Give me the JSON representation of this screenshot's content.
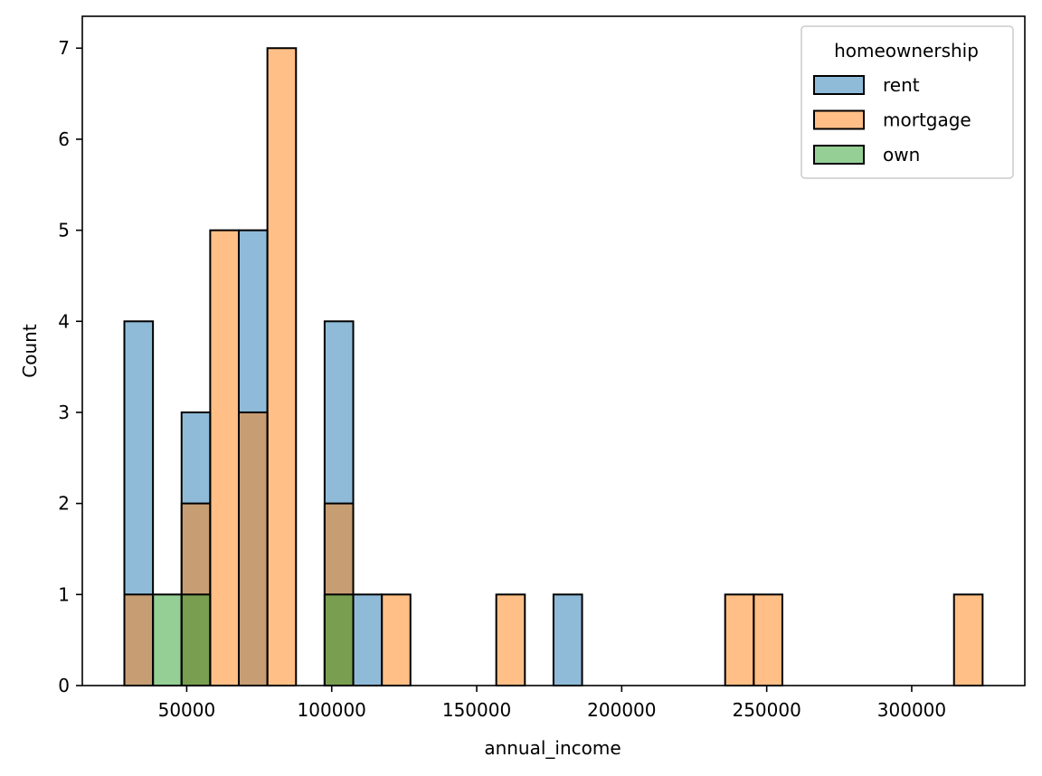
{
  "chart_data": {
    "type": "bar",
    "subtype": "overlaid histogram",
    "xlabel": "annual_income",
    "ylabel": "Count",
    "xlim": [
      14000,
      339000
    ],
    "ylim": [
      0,
      7.35
    ],
    "xticks": [
      50000,
      100000,
      150000,
      200000,
      250000,
      300000
    ],
    "xtick_labels": [
      "50000",
      "100000",
      "150000",
      "200000",
      "250000",
      "300000"
    ],
    "yticks": [
      0,
      1,
      2,
      3,
      4,
      5,
      6,
      7
    ],
    "ytick_labels": [
      "0",
      "1",
      "2",
      "3",
      "4",
      "5",
      "6",
      "7"
    ],
    "bin_start": 28500,
    "bin_width": 9865,
    "grid": false,
    "legend": {
      "title": "homeownership",
      "position": "top-right"
    },
    "series": [
      {
        "name": "rent",
        "color": "#1f77b4",
        "bins": [
          {
            "bin": 0,
            "count": 4
          },
          {
            "bin": 2,
            "count": 3
          },
          {
            "bin": 4,
            "count": 5
          },
          {
            "bin": 7,
            "count": 4
          },
          {
            "bin": 8,
            "count": 1
          },
          {
            "bin": 15,
            "count": 1
          }
        ]
      },
      {
        "name": "mortgage",
        "color": "#ff7f0e",
        "bins": [
          {
            "bin": 0,
            "count": 1
          },
          {
            "bin": 2,
            "count": 2
          },
          {
            "bin": 3,
            "count": 5
          },
          {
            "bin": 4,
            "count": 3
          },
          {
            "bin": 5,
            "count": 7
          },
          {
            "bin": 7,
            "count": 2
          },
          {
            "bin": 9,
            "count": 1
          },
          {
            "bin": 13,
            "count": 1
          },
          {
            "bin": 21,
            "count": 1
          },
          {
            "bin": 22,
            "count": 1
          },
          {
            "bin": 29,
            "count": 1
          }
        ]
      },
      {
        "name": "own",
        "color": "#2ca02c",
        "bins": [
          {
            "bin": 1,
            "count": 1
          },
          {
            "bin": 2,
            "count": 1
          },
          {
            "bin": 7,
            "count": 1
          }
        ]
      }
    ]
  }
}
